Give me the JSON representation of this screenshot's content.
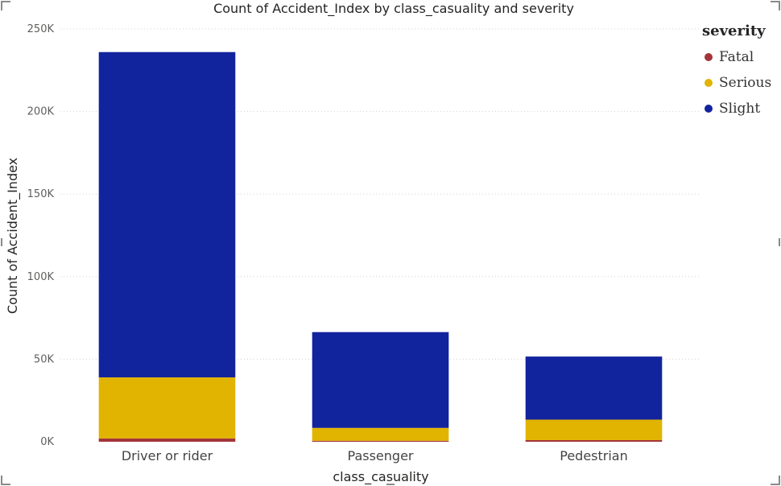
{
  "chart_data": {
    "type": "bar",
    "stacked": true,
    "title": "Count of Accident_Index by class_casuality and severity",
    "xlabel": "class_casuality",
    "ylabel": "Count of Accident_Index",
    "categories": [
      "Driver or rider",
      "Passenger",
      "Pedestrian"
    ],
    "series": [
      {
        "name": "Fatal",
        "color": "#A4343A",
        "values": [
          2000,
          600,
          1000
        ]
      },
      {
        "name": "Serious",
        "color": "#E0B400",
        "values": [
          37000,
          7800,
          12400
        ]
      },
      {
        "name": "Slight",
        "color": "#12239E",
        "values": [
          197000,
          58000,
          38200
        ]
      }
    ],
    "ylim": [
      0,
      250000
    ],
    "yticks": [
      {
        "value": 0,
        "label": "0K"
      },
      {
        "value": 50000,
        "label": "50K"
      },
      {
        "value": 100000,
        "label": "100K"
      },
      {
        "value": 150000,
        "label": "150K"
      },
      {
        "value": 200000,
        "label": "200K"
      },
      {
        "value": 250000,
        "label": "250K"
      }
    ],
    "grid": true,
    "legend": {
      "title": "severity",
      "position": "top-right"
    }
  }
}
